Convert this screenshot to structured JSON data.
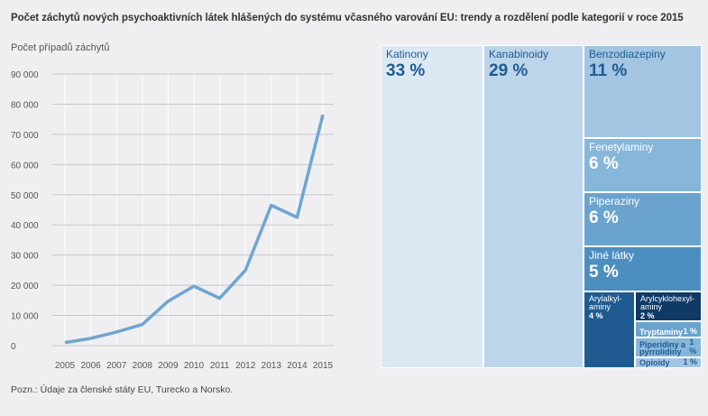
{
  "title": "Počet záchytů nových psychoaktivních látek hlášených do systému včasného varování EU: trendy a rozdělení podle kategorií v roce 2015",
  "note": "Pozn.: Údaje za členské státy EU, Turecko a Norsko.",
  "chart_data": [
    {
      "type": "line",
      "ylabel": "Počet případů záchytů",
      "ylim": [
        0,
        90000
      ],
      "yticks": [
        "0",
        "10 000",
        "20 000",
        "30 000",
        "40 000",
        "50 000",
        "60 000",
        "70 000",
        "80 000",
        "90 000"
      ],
      "categories": [
        "2005",
        "2006",
        "2007",
        "2008",
        "2009",
        "2010",
        "2011",
        "2012",
        "2013",
        "2014",
        "2015"
      ],
      "values": [
        1000,
        2400,
        4500,
        7000,
        14700,
        19700,
        15700,
        25000,
        46500,
        42500,
        76500
      ],
      "color": "#6fa5d2",
      "grid": true
    },
    {
      "type": "treemap",
      "items": [
        {
          "name": "Katinony",
          "value": "33 %",
          "color": "#dce9f5"
        },
        {
          "name": "Kanabinoidy",
          "value": "29 %",
          "color": "#bcd5ea"
        },
        {
          "name": "Benzodiazepiny",
          "value": "11 %",
          "color": "#a3c5e2"
        },
        {
          "name": "Fenetylaminy",
          "value": "6 %",
          "color": "#86b6d9"
        },
        {
          "name": "Piperaziny",
          "value": "6 %",
          "color": "#6aa3ce"
        },
        {
          "name": "Jiné látky",
          "value": "5 %",
          "color": "#4d8ec0"
        },
        {
          "name": "Arylalkyl-aminy",
          "value": "4 %",
          "color": "#1f5b91"
        },
        {
          "name": "Arylcyklohexyl-aminy",
          "value": "2 %",
          "color": "#0f3a66"
        },
        {
          "name": "Tryptaminy",
          "value": "1 %",
          "color": "#6aa3ce"
        },
        {
          "name": "Piperidiny a pyrrolidiny",
          "value": "1 %",
          "color": "#86b6d9"
        },
        {
          "name": "Opioidy",
          "value": "1 %",
          "color": "#a3c5e2"
        }
      ]
    }
  ]
}
